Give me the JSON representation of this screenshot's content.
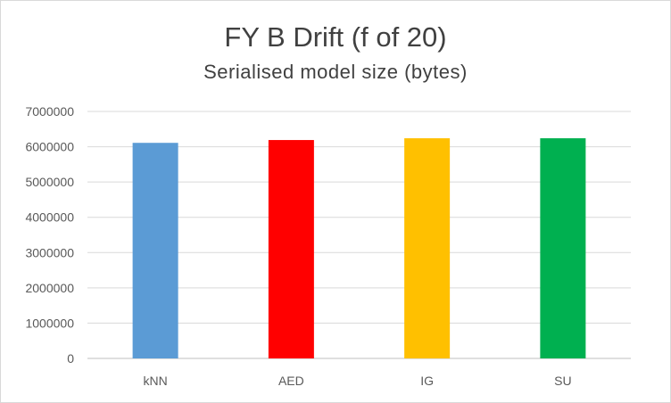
{
  "chart_data": {
    "type": "bar",
    "title": "FY B Drift (f of 20)",
    "subtitle": "Serialised model size (bytes)",
    "categories": [
      "kNN",
      "AED",
      "IG",
      "SU"
    ],
    "values": [
      6110000,
      6190000,
      6240000,
      6240000
    ],
    "colors": [
      "#5b9bd5",
      "#ff0000",
      "#ffc000",
      "#00b050"
    ],
    "ylim": [
      0,
      7000000
    ],
    "yticks": [
      0,
      1000000,
      2000000,
      3000000,
      4000000,
      5000000,
      6000000,
      7000000
    ],
    "grid": true,
    "legend": "none"
  }
}
